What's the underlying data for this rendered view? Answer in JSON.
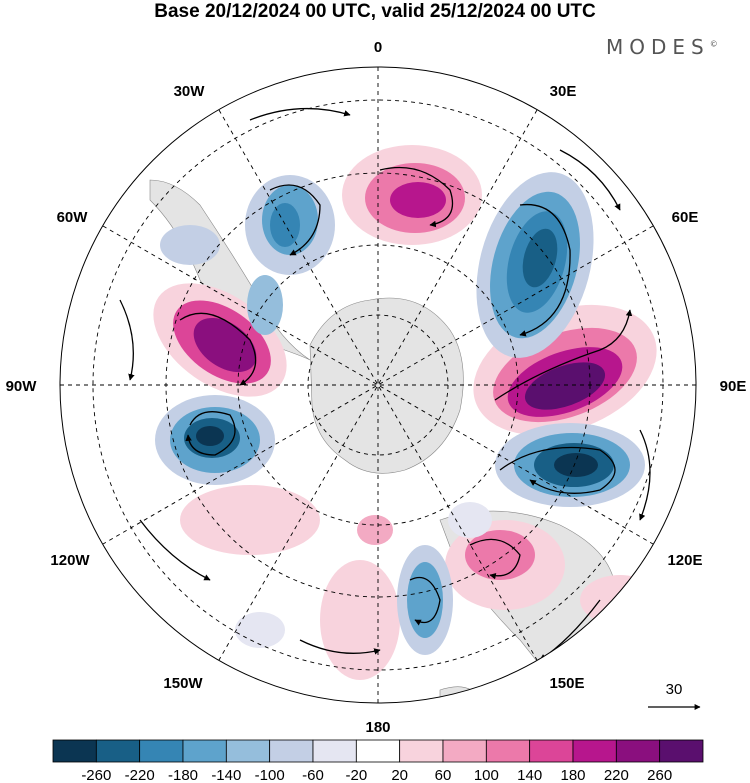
{
  "header": {
    "title": "Base 20/12/2024 00 UTC, valid 25/12/2024 00 UTC",
    "brand": "MODES",
    "brand_mark": "©"
  },
  "map": {
    "projection": "south polar stereographic",
    "longitude_labels": {
      "top": "0",
      "top_right": "30E",
      "right_upper": "60E",
      "right": "90E",
      "right_lower": "120E",
      "bottom_right": "150E",
      "bottom": "180",
      "bottom_left": "150W",
      "left_lower": "120W",
      "left": "90W",
      "left_upper": "60W",
      "top_left": "30W"
    },
    "reference_vector": "30",
    "anomaly_centers": [
      {
        "sign": "positive",
        "region": "south of Africa (0E)"
      },
      {
        "sign": "negative",
        "region": "south-west Indian Ocean (50E)"
      },
      {
        "sign": "positive",
        "region": "southern Indian Ocean (85E)"
      },
      {
        "sign": "negative",
        "region": "south of Australia (110E)"
      },
      {
        "sign": "positive",
        "region": "south-east Australia (135E)"
      },
      {
        "sign": "negative",
        "region": "Tasman Sea (160E)"
      },
      {
        "sign": "positive",
        "region": "south-east Pacific (75W)"
      },
      {
        "sign": "negative",
        "region": "south-east Pacific (100W)"
      },
      {
        "sign": "negative",
        "region": "South Atlantic (30W)"
      }
    ]
  },
  "colorbar": {
    "labels": [
      "-260",
      "-220",
      "-180",
      "-140",
      "-100",
      "-60",
      "-20",
      "20",
      "60",
      "100",
      "140",
      "180",
      "220",
      "260"
    ],
    "colors": [
      "#0b3552",
      "#185f86",
      "#3585b4",
      "#5ea3cc",
      "#95bedc",
      "#c3cfe5",
      "#e5e6f2",
      "#ffffff",
      "#f8d3dd",
      "#f3aac3",
      "#ec79aa",
      "#dc4598",
      "#b7168d",
      "#8a0f7e",
      "#5a0f6e"
    ]
  }
}
